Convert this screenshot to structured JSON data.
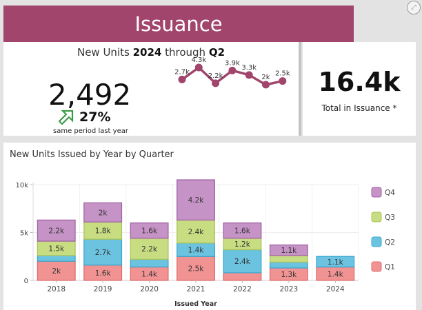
{
  "header": {
    "title": "Issuance",
    "expand_icon": "expand-icon"
  },
  "kpi": {
    "subtitle_prefix": "New Units ",
    "subtitle_year": "2024",
    "subtitle_mid": " through ",
    "subtitle_quarter": "Q2",
    "value": "2,492",
    "change_icon": "arrow-up-right-icon",
    "change_pct": "27%",
    "change_caption": "same period last year",
    "accent_color": "#a1456c",
    "up_color": "#3a9b47"
  },
  "sparkline": {
    "labels": [
      "2.7k",
      "4.3k",
      "2.2k",
      "3.9k",
      "3.3k",
      "2k",
      "2.5k"
    ],
    "values": [
      2.7,
      4.3,
      2.2,
      3.9,
      3.3,
      2.0,
      2.5
    ]
  },
  "total": {
    "value": "16.4k",
    "label": "Total in Issuance *"
  },
  "chart_data": {
    "type": "bar",
    "stacked": true,
    "title": "New Units Issued by Year by Quarter",
    "xlabel": "Issued Year",
    "ylabel": "",
    "ylim": [
      0,
      10000
    ],
    "yticks": [
      0,
      5000,
      10000
    ],
    "ytick_labels": [
      "0",
      "5k",
      "10k"
    ],
    "grid": true,
    "legend_position": "right",
    "categories": [
      "2018",
      "2019",
      "2020",
      "2021",
      "2022",
      "2023",
      "2024"
    ],
    "series": [
      {
        "name": "Q1",
        "color": "#f29393",
        "border": "#e06c6c",
        "values": [
          2000,
          1600,
          1400,
          2500,
          800,
          1300,
          1400
        ],
        "labels": [
          "2k",
          "1.6k",
          "1.4k",
          "2.5k",
          "",
          "1.3k",
          "1.4k"
        ]
      },
      {
        "name": "Q2",
        "color": "#6cc3e0",
        "border": "#3aa8d0",
        "values": [
          600,
          2700,
          800,
          1400,
          2400,
          600,
          1100
        ],
        "labels": [
          "",
          "2.7k",
          "",
          "1.4k",
          "2.4k",
          "",
          "1.1k"
        ]
      },
      {
        "name": "Q3",
        "color": "#c8dc82",
        "border": "#a9c558",
        "values": [
          1500,
          1800,
          2200,
          2400,
          1200,
          700,
          0
        ],
        "labels": [
          "1.5k",
          "1.8k",
          "2.2k",
          "2.4k",
          "1.2k",
          "",
          ""
        ]
      },
      {
        "name": "Q4",
        "color": "#c593c6",
        "border": "#a262a6",
        "values": [
          2200,
          2000,
          1600,
          4200,
          1600,
          1100,
          0
        ],
        "labels": [
          "2.2k",
          "2k",
          "1.6k",
          "4.2k",
          "1.6k",
          "1.1k",
          ""
        ]
      }
    ],
    "legend_order": [
      "Q4",
      "Q3",
      "Q2",
      "Q1"
    ]
  }
}
